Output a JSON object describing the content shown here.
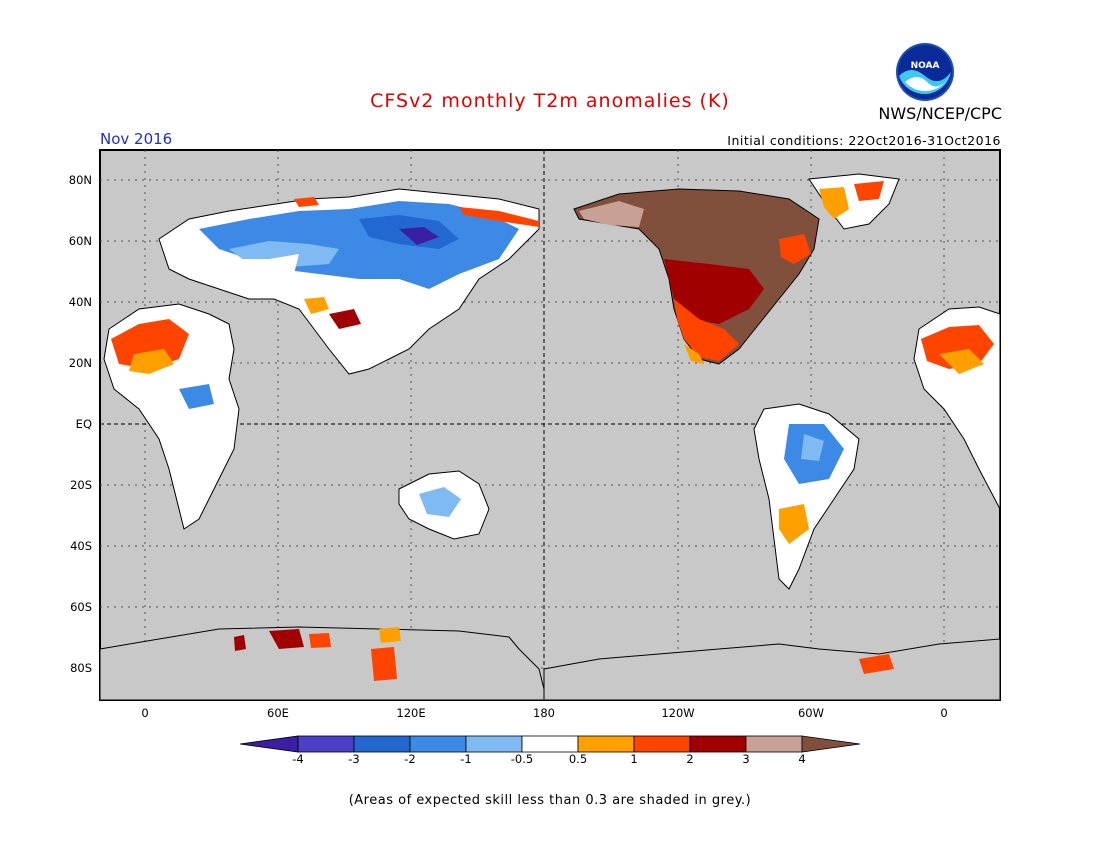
{
  "header": {
    "title": "CFSv2 monthly T2m anomalies (K)",
    "organization": "NWS/NCEP/CPC",
    "logo_text": "NOAA",
    "month": "Nov 2016",
    "initial_conditions": "Initial conditions: 22Oct2016-31Oct2016"
  },
  "map": {
    "background_color": "#c8c8c8",
    "lat_labels": [
      "80N",
      "60N",
      "40N",
      "20N",
      "EQ",
      "20S",
      "40S",
      "60S",
      "80S"
    ],
    "lon_labels": [
      "0",
      "60E",
      "120E",
      "180",
      "120W",
      "60W",
      "0"
    ]
  },
  "legend": {
    "labels": [
      "-4",
      "-3",
      "-2",
      "-1",
      "-0.5",
      "0.5",
      "1",
      "2",
      "3",
      "4"
    ],
    "colors": [
      "#3a1fa5",
      "#4b40c8",
      "#2268d0",
      "#3d8ae6",
      "#7fbaf2",
      "#ffffff",
      "#ffa000",
      "#ff4400",
      "#a00000",
      "#c8a096",
      "#80503c"
    ]
  },
  "footnote": "(Areas of expected skill less than 0.3 are shaded in grey.)"
}
